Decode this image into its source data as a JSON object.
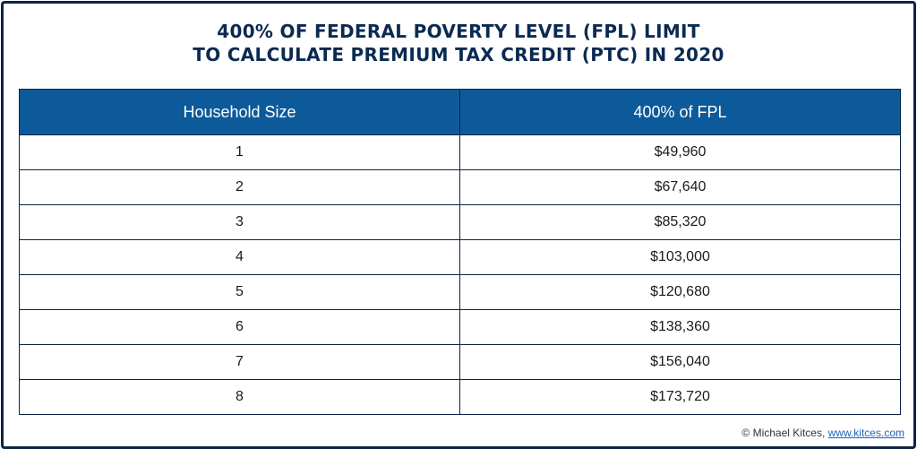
{
  "title": {
    "line1": "400% OF FEDERAL POVERTY LEVEL (FPL) LIMIT",
    "line2": "TO CALCULATE PREMIUM TAX CREDIT (PTC) IN 2020"
  },
  "table": {
    "headers": [
      "Household Size",
      "400% of FPL"
    ],
    "rows": [
      [
        "1",
        "$49,960"
      ],
      [
        "2",
        "$67,640"
      ],
      [
        "3",
        "$85,320"
      ],
      [
        "4",
        "$103,000"
      ],
      [
        "5",
        "$120,680"
      ],
      [
        "6",
        "$138,360"
      ],
      [
        "7",
        "$156,040"
      ],
      [
        "8",
        "$173,720"
      ]
    ]
  },
  "credit": {
    "text": "© Michael Kitces, ",
    "link": "www.kitces.com"
  },
  "colors": {
    "header_bg": "#0d5a9a",
    "border": "#0b2447",
    "title": "#0b2a52"
  }
}
